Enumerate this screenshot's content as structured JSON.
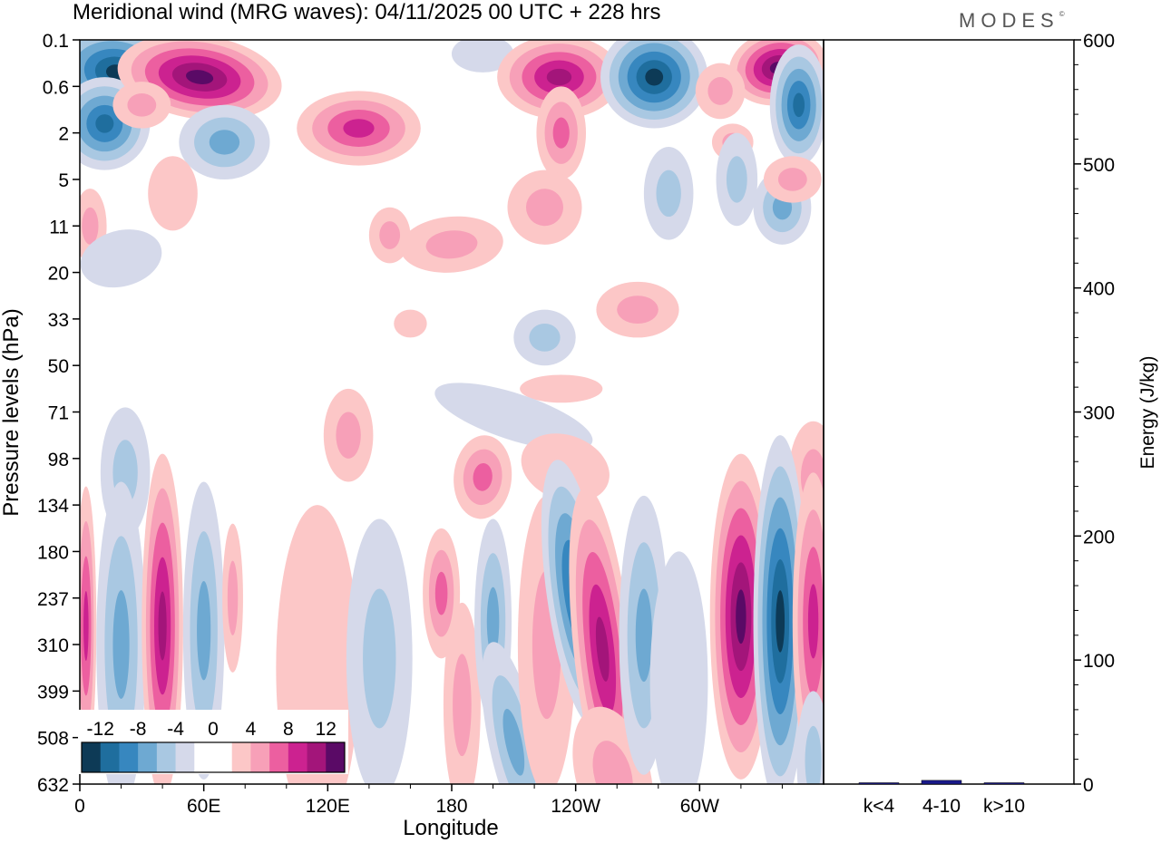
{
  "header": {
    "title": "Meridional wind (MRG waves):  04/11/2025  00 UTC  + 228 hrs",
    "brand": "MODES",
    "brand_mark": "©"
  },
  "colors": {
    "scale": [
      "#0d3a56",
      "#1f6e9e",
      "#3787bf",
      "#6ea9d2",
      "#a9c8e2",
      "#d5d9ea",
      "#ffffff",
      "#ffffff",
      "#fcc7c7",
      "#f7a0b8",
      "#ec5fa0",
      "#cc2290",
      "#a3157a",
      "#5a0a66"
    ],
    "neg_levels": [
      "#d5d9ea",
      "#a9c8e2",
      "#6ea9d2",
      "#3787bf",
      "#1f6e9e",
      "#0d3a56"
    ],
    "pos_levels": [
      "#fcc7c7",
      "#f7a0b8",
      "#ec5fa0",
      "#cc2290",
      "#a3157a",
      "#5a0a66"
    ],
    "bar": "#1a1a8c"
  },
  "chart_data": [
    {
      "type": "heatmap",
      "title": "Meridional wind (MRG waves)",
      "xlabel": "Longitude",
      "ylabel": "Pressure levels (hPa)",
      "x_ticks": [
        "0",
        "60E",
        "120E",
        "180",
        "120W",
        "60W"
      ],
      "x_range": [
        0,
        360
      ],
      "y_ticks": [
        "0.1",
        "0.6",
        "2",
        "5",
        "11",
        "20",
        "33",
        "50",
        "71",
        "98",
        "134",
        "180",
        "237",
        "310",
        "399",
        "508",
        "632"
      ],
      "colorbar_labels": [
        "-12",
        "-8",
        "-4",
        "0",
        "4",
        "8",
        "12"
      ],
      "levels": [
        -14,
        -12,
        -10,
        -8,
        -6,
        -4,
        -2,
        0,
        2,
        4,
        6,
        8,
        10,
        12,
        14
      ],
      "features": [
        {
          "lon": 20,
          "level_idx": 0.9,
          "value": -14,
          "note": "upper-level trough"
        },
        {
          "lon": 60,
          "level_idx": 0.9,
          "value": 11,
          "note": "upper-level ridge"
        },
        {
          "lon": 135,
          "level_idx": 2.2,
          "value": 7
        },
        {
          "lon": 70,
          "level_idx": 2.2,
          "value": -5
        },
        {
          "lon": 230,
          "level_idx": 0.9,
          "value": 10
        },
        {
          "lon": 280,
          "level_idx": 0.9,
          "value": -11
        },
        {
          "lon": 338,
          "level_idx": 0.7,
          "value": 13
        },
        {
          "lon": 255,
          "level_idx": 12.3,
          "value": -9
        },
        {
          "lon": 265,
          "level_idx": 12.6,
          "value": 10
        },
        {
          "lon": 320,
          "level_idx": 12.5,
          "value": 14
        },
        {
          "lon": 340,
          "level_idx": 12.6,
          "value": -14
        },
        {
          "lon": 40,
          "level_idx": 12.6,
          "value": 9
        },
        {
          "lon": 20,
          "level_idx": 13,
          "value": -5
        }
      ]
    },
    {
      "type": "bar",
      "categories": [
        "k<4",
        "4-10",
        "k>10"
      ],
      "values": [
        0.5,
        3,
        0.5
      ],
      "ylabel": "Energy (J/kg)",
      "ylim": [
        0,
        600
      ],
      "y_ticks": [
        "0",
        "100",
        "200",
        "300",
        "400",
        "500",
        "600"
      ]
    }
  ]
}
